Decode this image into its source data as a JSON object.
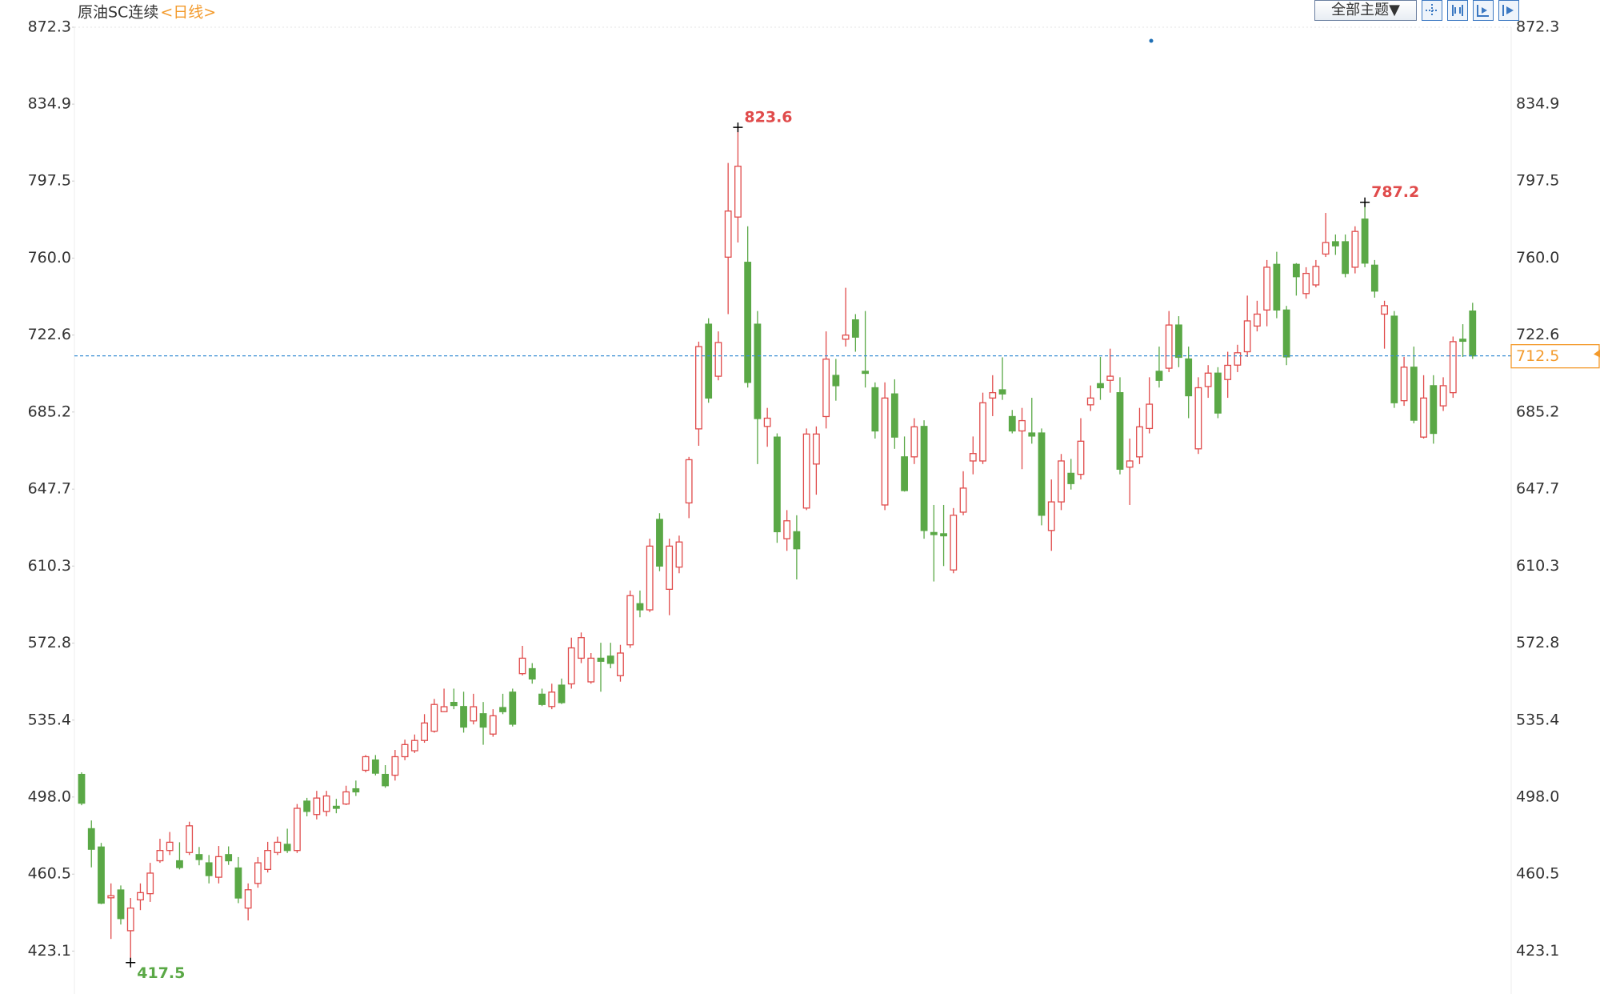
{
  "chart_data": {
    "type": "candlestick",
    "title": "原油SC连续",
    "period": "<日线>",
    "ylim": [
      403,
      872.3
    ],
    "yticks": [
      423.1,
      460.5,
      {
        "value": 498,
        "label": "498.0"
      },
      535.4,
      572.8,
      610.3,
      647.7,
      685.2,
      722.6,
      {
        "value": 760,
        "label": "760.0"
      },
      797.5,
      834.9,
      872.3
    ],
    "grid": false,
    "up_color": "#e04b4b",
    "down_color": "#5aa846",
    "open": [
      509,
      482.6,
      473.7,
      449,
      452.8,
      433,
      448,
      451,
      467,
      472,
      467,
      471,
      470,
      466,
      459,
      470,
      463.5,
      444,
      456,
      462.8,
      471,
      475,
      472,
      496,
      489.5,
      491,
      493.5,
      494.6,
      502,
      511,
      516,
      509,
      508.6,
      517.6,
      520.5,
      525.5,
      530,
      539.5,
      544,
      542,
      535,
      538.5,
      528.6,
      541.5,
      549,
      558,
      560.4,
      548,
      542,
      552.4,
      553,
      565.5,
      554,
      565.5,
      566.5,
      557,
      572,
      592,
      589,
      633,
      599,
      609.8,
      641,
      677,
      727.9,
      702.6,
      760.5,
      780,
      758,
      727.9,
      678.2,
      673,
      623.6,
      627,
      638.5,
      659.9,
      683,
      703,
      720.6,
      730,
      705,
      697,
      640,
      694,
      663.4,
      663.4,
      678.2,
      626.6,
      626,
      608.4,
      636.5,
      661.4,
      661.4,
      692,
      696,
      683,
      676,
      675,
      675,
      627.6,
      641.5,
      655.4,
      654.9,
      688.7,
      699,
      700.6,
      694.6,
      658.4,
      663.4,
      677.2,
      705,
      706.5,
      727.5,
      711,
      667.3,
      697.6,
      704.1,
      701,
      708,
      714.5,
      727,
      734.8,
      757,
      734.8,
      757,
      742.8,
      747,
      762,
      768,
      768,
      755.6,
      779,
      756.6,
      732.8,
      731.8,
      690.7,
      707,
      673,
      698,
      688.2,
      694.6,
      720.6,
      734.3
    ],
    "high": [
      510,
      486.6,
      475.7,
      456,
      455,
      448.9,
      456,
      466,
      477.7,
      481,
      476,
      486,
      473.7,
      469.8,
      474.2,
      474,
      468.8,
      456,
      468.8,
      476.2,
      478.7,
      482.6,
      494.6,
      497.6,
      501,
      501,
      497.1,
      503.5,
      506,
      518.4,
      518.4,
      513.5,
      520.9,
      525.9,
      528.4,
      538.3,
      545.7,
      550.7,
      550.7,
      549.2,
      548.2,
      544.2,
      540.7,
      548.2,
      550.7,
      571.5,
      563.1,
      550.7,
      553.1,
      555.6,
      575.5,
      578,
      568,
      573,
      573,
      572,
      598.4,
      598.4,
      623.6,
      636,
      623.6,
      625.1,
      663.4,
      719.4,
      730.8,
      724.4,
      806.3,
      823.6,
      775.5,
      734.3,
      687.2,
      674.8,
      637.5,
      635,
      677.2,
      678.2,
      724.4,
      711,
      745.6,
      732.8,
      734.3,
      699.6,
      699.6,
      701.1,
      673.3,
      682.2,
      681.2,
      640,
      640,
      638.5,
      656.4,
      673.3,
      694.6,
      703.1,
      711.8,
      686.2,
      687.2,
      692.1,
      677.2,
      652.4,
      664.8,
      662.4,
      682.2,
      698.1,
      712,
      716,
      702.1,
      672.3,
      687.2,
      702.1,
      717,
      734.3,
      731.8,
      717,
      702.1,
      708,
      707,
      714.5,
      717.9,
      741.8,
      739.3,
      759.1,
      763.1,
      736.8,
      757.6,
      755.6,
      759.1,
      782,
      771.5,
      771.5,
      775.5,
      787.2,
      759.1,
      739.3,
      734.3,
      712,
      717,
      703.1,
      703.1,
      702.1,
      721.9,
      727.9,
      738.3
    ],
    "low": [
      494,
      463.8,
      445.9,
      429,
      436,
      417.5,
      443,
      447,
      466,
      469.8,
      462.8,
      469.8,
      464.8,
      456,
      456,
      465,
      446.4,
      438,
      453.9,
      461.3,
      469.8,
      470.8,
      470.8,
      488.6,
      487.1,
      488.6,
      490.1,
      494.1,
      498.5,
      510,
      508.5,
      502.5,
      506,
      515.9,
      519.4,
      524.4,
      529.3,
      539.3,
      540.7,
      529.3,
      533.3,
      523.4,
      527.3,
      538.3,
      532.3,
      557.1,
      553.1,
      542.2,
      540.7,
      543.2,
      550.7,
      563.1,
      553.1,
      549.2,
      560.6,
      554.1,
      570.5,
      585.4,
      587.9,
      607.8,
      586.4,
      606.8,
      633.6,
      668.8,
      689.7,
      700.6,
      732.8,
      767.6,
      697.1,
      659.9,
      668.3,
      621.6,
      617.7,
      603.8,
      637.5,
      645,
      677.2,
      690.7,
      717,
      714.5,
      697.1,
      672.3,
      637.5,
      667.3,
      646.5,
      659.9,
      623.6,
      602.8,
      610.3,
      606.8,
      635,
      654.9,
      659.9,
      683.2,
      691.1,
      674.8,
      657.4,
      669.8,
      630.1,
      617.7,
      637.5,
      647.5,
      652.4,
      685.7,
      691.1,
      694.6,
      654.9,
      640,
      659.9,
      674.8,
      697.1,
      704.6,
      707,
      682.2,
      664.8,
      692.1,
      682.2,
      692.1,
      704.6,
      712,
      724.4,
      726.9,
      730.8,
      708,
      741.8,
      740.3,
      745.8,
      760.6,
      761.6,
      750.7,
      752.6,
      755.6,
      740.8,
      716,
      687.2,
      688.2,
      679.7,
      672.3,
      669.8,
      685.7,
      692.1,
      712,
      711
    ],
    "close": [
      495,
      472.6,
      446.4,
      450,
      438.9,
      444,
      451.5,
      461,
      472,
      476,
      463.7,
      484,
      467.6,
      459.8,
      469,
      467,
      448.9,
      452.9,
      466,
      472,
      476,
      472,
      492.5,
      491,
      497.5,
      498.5,
      492.5,
      500.5,
      500.5,
      517.6,
      509.6,
      503.5,
      517.6,
      523.5,
      525.5,
      534,
      543,
      541.9,
      542.5,
      532,
      541.9,
      532,
      537.5,
      539.5,
      533.4,
      565.5,
      555.4,
      543,
      549,
      543.9,
      570.5,
      575.5,
      565.5,
      564,
      563,
      568,
      595.9,
      589,
      620,
      610.3,
      620,
      622,
      662,
      717,
      692,
      719,
      782.9,
      804.7,
      699.6,
      682,
      682.2,
      627,
      632.3,
      618.7,
      674.5,
      674.5,
      710.9,
      698,
      722.6,
      721.6,
      704,
      676,
      692,
      673,
      647,
      678,
      627.6,
      625.6,
      625,
      635,
      648.2,
      665,
      689.7,
      694.6,
      694,
      676,
      681,
      673.5,
      635,
      641.5,
      661.4,
      650.4,
      671,
      692,
      697,
      702.6,
      657.4,
      661.4,
      678,
      689,
      700.6,
      727.5,
      711.8,
      693.1,
      697,
      704.1,
      684.7,
      707.9,
      714,
      729.5,
      732.8,
      755.6,
      734.8,
      712,
      751,
      752.6,
      756,
      767.6,
      766,
      752.6,
      773,
      757.6,
      744,
      736.9,
      689.7,
      707,
      681.2,
      692,
      674.8,
      698,
      719.4,
      719.6,
      712.5
    ],
    "high_marks": [
      823.6,
      787.2
    ],
    "low_marks": [
      417.5
    ],
    "current_price": 712.5,
    "current_price_color": "#f39a2b",
    "price_line_color": "#3a8fd4"
  },
  "toolbar": {
    "theme_button": "全部主题▼"
  }
}
